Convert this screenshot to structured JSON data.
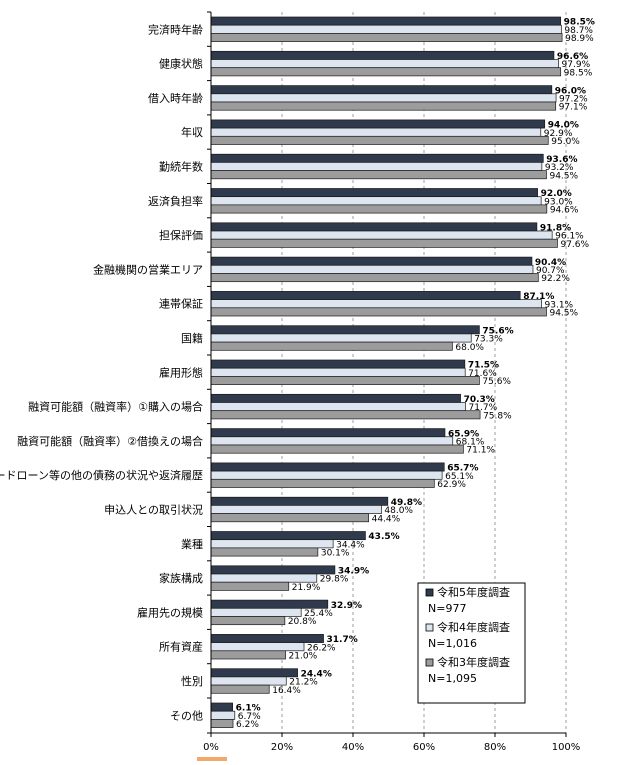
{
  "chart_data": {
    "type": "bar",
    "orientation": "horizontal",
    "xlim": [
      0,
      100
    ],
    "x_ticks": [
      "0%",
      "20%",
      "40%",
      "60%",
      "80%",
      "100%"
    ],
    "grid": "vertical-dashed",
    "legend_position": "bottom-right",
    "categories": [
      "完済時年齢",
      "健康状態",
      "借入時年齢",
      "年収",
      "勤続年数",
      "返済負担率",
      "担保評価",
      "金融機関の営業エリア",
      "連帯保証",
      "国籍",
      "雇用形態",
      "融資可能額（融資率）①購入の場合",
      "融資可能額（融資率）②借換えの場合",
      "カードローン等の他の債務の状況や返済履歴",
      "申込人との取引状況",
      "業種",
      "家族構成",
      "雇用先の規模",
      "所有資産",
      "性別",
      "その他"
    ],
    "series": [
      {
        "name": "令和5年度調査",
        "n_label": "N=977",
        "color": "#2f3a4d",
        "values": [
          98.5,
          96.6,
          96.0,
          94.0,
          93.6,
          92.0,
          91.8,
          90.4,
          87.1,
          75.6,
          71.5,
          70.3,
          65.9,
          65.7,
          49.8,
          43.5,
          34.9,
          32.9,
          31.7,
          24.4,
          6.1
        ]
      },
      {
        "name": "令和4年度調査",
        "n_label": "N=1,016",
        "color": "#dde6f0",
        "values": [
          98.7,
          97.9,
          97.2,
          92.9,
          93.2,
          93.0,
          96.1,
          90.7,
          93.1,
          73.3,
          71.6,
          71.7,
          68.1,
          65.1,
          48.0,
          34.4,
          29.8,
          25.4,
          26.2,
          21.2,
          6.7
        ]
      },
      {
        "name": "令和3年度調査",
        "n_label": "N=1,095",
        "color": "#9c9c9c",
        "values": [
          98.9,
          98.5,
          97.1,
          95.0,
          94.5,
          94.6,
          97.6,
          92.2,
          94.5,
          68.0,
          75.6,
          75.8,
          71.1,
          62.9,
          44.4,
          30.1,
          21.9,
          20.8,
          21.0,
          16.4,
          6.2
        ]
      }
    ],
    "value_labels": [
      [
        "98.5%",
        "96.6%",
        "96.0%",
        "94.0%",
        "93.6%",
        "92.0%",
        "91.8%",
        "90.4%",
        "87.1%",
        "75.6%",
        "71.5%",
        "70.3%",
        "65.9%",
        "65.7%",
        "49.8%",
        "43.5%",
        "34.9%",
        "32.9%",
        "31.7%",
        "24.4%",
        "6.1%"
      ],
      [
        "98.7%",
        "97.9%",
        "97.2%",
        "92.9%",
        "93.2%",
        "93.0%",
        "96.1%",
        "90.7%",
        "93.1%",
        "73.3%",
        "71.6%",
        "71.7%",
        "68.1%",
        "65.1%",
        "48.0%",
        "34.4%",
        "29.8%",
        "25.4%",
        "26.2%",
        "21.2%",
        "6.7%"
      ],
      [
        "98.9%",
        "98.5%",
        "97.1%",
        "95.0%",
        "94.5%",
        "94.6%",
        "97.6%",
        "92.2%",
        "94.5%",
        "68.0%",
        "75.6%",
        "75.8%",
        "71.1%",
        "62.9%",
        "44.4%",
        "30.1%",
        "21.9%",
        "20.8%",
        "21.0%",
        "16.4%",
        "6.2%"
      ]
    ]
  },
  "accent_color": "#f2a96b"
}
